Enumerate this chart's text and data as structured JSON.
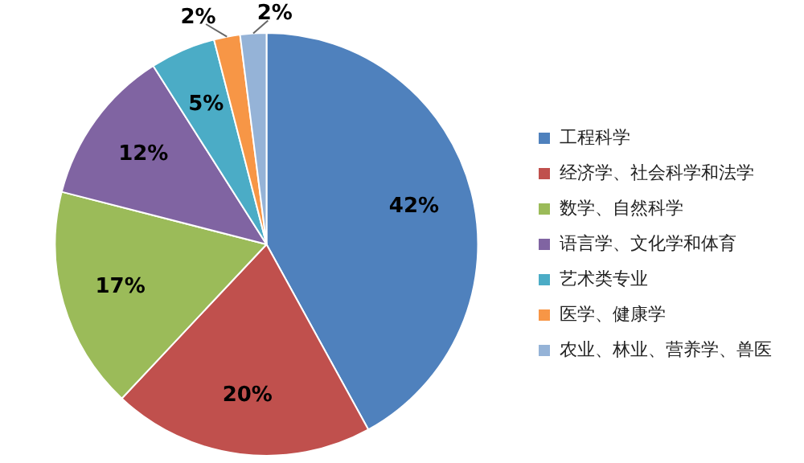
{
  "chart_data": {
    "type": "pie",
    "categories": [
      "工程科学",
      "经济学、社会科学和法学",
      "数学、自然科学",
      "语言学、文化学和体育",
      "艺术类专业",
      "医学、健康学",
      "农业、林业、营养学、兽医"
    ],
    "values": [
      42,
      20,
      17,
      12,
      5,
      2,
      2
    ],
    "colors": [
      "#4f81bd",
      "#c0504d",
      "#9bbb59",
      "#8064a2",
      "#4bacc6",
      "#f79646",
      "#95b3d7"
    ],
    "value_labels": [
      "42%",
      "20%",
      "17%",
      "12%",
      "5%",
      "2%",
      "2%"
    ],
    "legend": "right"
  }
}
